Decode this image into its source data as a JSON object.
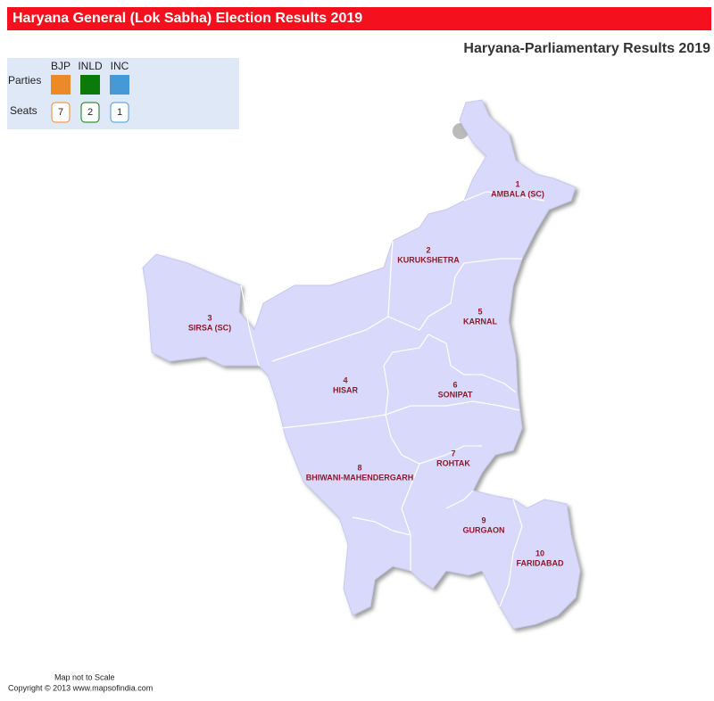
{
  "header": {
    "title": "Haryana General (Lok Sabha) Election Results 2019",
    "subtitle": "Haryana-Parliamentary Results 2019"
  },
  "legend": {
    "parties_label": "Parties",
    "seats_label": "Seats",
    "parties": [
      {
        "name": "BJP",
        "color": "#ec8a2a",
        "seats": 7
      },
      {
        "name": "INLD",
        "color": "#0a7a0a",
        "seats": 2
      },
      {
        "name": "INC",
        "color": "#4499d6",
        "seats": 1
      }
    ]
  },
  "constituencies": [
    {
      "number": 1,
      "name": "AMBALA (SC)"
    },
    {
      "number": 2,
      "name": "KURUKSHETRA"
    },
    {
      "number": 3,
      "name": "SIRSA (SC)"
    },
    {
      "number": 4,
      "name": "HISAR"
    },
    {
      "number": 5,
      "name": "KARNAL"
    },
    {
      "number": 6,
      "name": "SONIPAT"
    },
    {
      "number": 7,
      "name": "ROHTAK"
    },
    {
      "number": 8,
      "name": "BHIWANI-MAHENDERGARH"
    },
    {
      "number": 9,
      "name": "GURGAON"
    },
    {
      "number": 10,
      "name": "FARIDABAD"
    }
  ],
  "footer": {
    "note": "Map not to Scale",
    "copyright": "Copyright © 2013 www.mapsofindia.com"
  }
}
